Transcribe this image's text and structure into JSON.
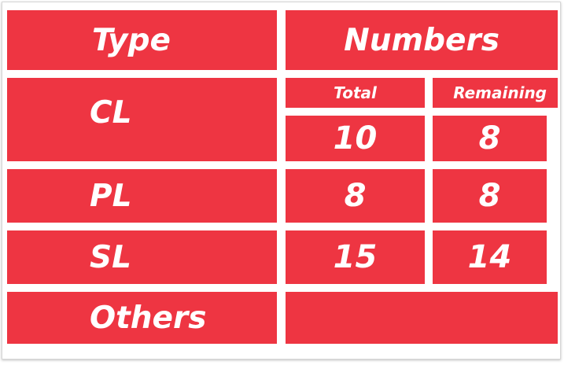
{
  "colors": {
    "cell_background": "#ee3542",
    "cell_text": "#ffffff",
    "page_background": "#ffffff"
  },
  "header": {
    "type_label": "Type",
    "numbers_label": "Numbers"
  },
  "subheader": {
    "total_label": "Total",
    "remaining_label": "Remaining"
  },
  "rows": [
    {
      "type": "CL",
      "total": "10",
      "remaining": "8"
    },
    {
      "type": "PL",
      "total": "8",
      "remaining": "8"
    },
    {
      "type": "SL",
      "total": "15",
      "remaining": "14"
    },
    {
      "type": "Others",
      "total": "",
      "remaining": ""
    }
  ]
}
